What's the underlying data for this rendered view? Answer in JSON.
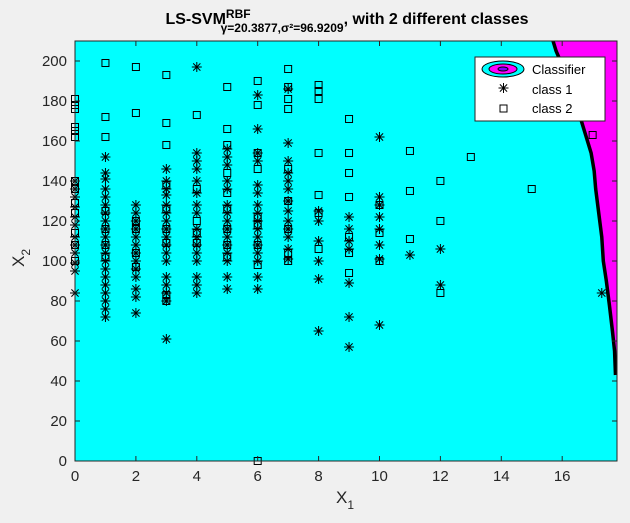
{
  "chart_data": {
    "type": "scatter",
    "title": {
      "main": "LS-SVM",
      "superscript": "RBF",
      "subscript": "γ=20.3877,σ²=96.9209",
      "suffix": ", with 2 different classes"
    },
    "xlabel": {
      "base": "X",
      "sub": "1"
    },
    "ylabel": {
      "base": "X",
      "sub": "2"
    },
    "xlim": [
      0,
      17.8
    ],
    "ylim": [
      0,
      210
    ],
    "xticks": [
      0,
      2,
      4,
      6,
      8,
      10,
      12,
      14,
      16
    ],
    "yticks": [
      0,
      20,
      40,
      60,
      80,
      100,
      120,
      140,
      160,
      180,
      200
    ],
    "grid": false,
    "legend_position": "top-right",
    "colors": {
      "region_class_1": "#00ffff",
      "region_class_2": "#ff00ff",
      "boundary": "#000000",
      "markers": "#000000",
      "figure_background": "#f0f0f0"
    },
    "legend": [
      "Classifier",
      "class 1",
      "class 2"
    ],
    "decision_boundary": [
      [
        15.7,
        210
      ],
      [
        15.8,
        205
      ],
      [
        16.0,
        198
      ],
      [
        16.2,
        190
      ],
      [
        16.4,
        182
      ],
      [
        16.55,
        174
      ],
      [
        16.75,
        164
      ],
      [
        16.95,
        154
      ],
      [
        17.05,
        145
      ],
      [
        17.1,
        136
      ],
      [
        17.2,
        124
      ],
      [
        17.3,
        112
      ],
      [
        17.35,
        100
      ],
      [
        17.45,
        90
      ],
      [
        17.55,
        78
      ],
      [
        17.65,
        65
      ],
      [
        17.72,
        55
      ],
      [
        17.75,
        43
      ]
    ],
    "series": [
      {
        "name": "class 1",
        "marker": "asterisk",
        "points": [
          [
            0,
            84
          ],
          [
            0,
            95
          ],
          [
            0,
            99
          ],
          [
            0,
            104
          ],
          [
            0,
            108
          ],
          [
            0,
            112
          ],
          [
            0,
            118
          ],
          [
            0,
            122
          ],
          [
            0,
            127
          ],
          [
            0,
            132
          ],
          [
            0,
            136
          ],
          [
            0,
            140
          ],
          [
            1,
            72
          ],
          [
            1,
            76
          ],
          [
            1,
            80
          ],
          [
            1,
            84
          ],
          [
            1,
            88
          ],
          [
            1,
            92
          ],
          [
            1,
            96
          ],
          [
            1,
            100
          ],
          [
            1,
            104
          ],
          [
            1,
            108
          ],
          [
            1,
            112
          ],
          [
            1,
            116
          ],
          [
            1,
            120
          ],
          [
            1,
            124
          ],
          [
            1,
            128
          ],
          [
            1,
            132
          ],
          [
            1,
            136
          ],
          [
            1,
            141
          ],
          [
            1,
            144
          ],
          [
            1,
            152
          ],
          [
            2,
            74
          ],
          [
            2,
            82
          ],
          [
            2,
            86
          ],
          [
            2,
            92
          ],
          [
            2,
            96
          ],
          [
            2,
            100
          ],
          [
            2,
            104
          ],
          [
            2,
            108
          ],
          [
            2,
            112
          ],
          [
            2,
            116
          ],
          [
            2,
            120
          ],
          [
            2,
            124
          ],
          [
            2,
            128
          ],
          [
            3,
            61
          ],
          [
            3,
            80
          ],
          [
            3,
            84
          ],
          [
            3,
            88
          ],
          [
            3,
            92
          ],
          [
            3,
            100
          ],
          [
            3,
            104
          ],
          [
            3,
            108
          ],
          [
            3,
            112
          ],
          [
            3,
            116
          ],
          [
            3,
            120
          ],
          [
            3,
            124
          ],
          [
            3,
            128
          ],
          [
            3,
            133
          ],
          [
            3,
            136
          ],
          [
            3,
            140
          ],
          [
            3,
            146
          ],
          [
            4,
            84
          ],
          [
            4,
            88
          ],
          [
            4,
            92
          ],
          [
            4,
            100
          ],
          [
            4,
            104
          ],
          [
            4,
            108
          ],
          [
            4,
            112
          ],
          [
            4,
            116
          ],
          [
            4,
            124
          ],
          [
            4,
            128
          ],
          [
            4,
            134
          ],
          [
            4,
            140
          ],
          [
            4,
            146
          ],
          [
            4,
            150
          ],
          [
            4,
            154
          ],
          [
            4,
            197
          ],
          [
            5,
            86
          ],
          [
            5,
            92
          ],
          [
            5,
            100
          ],
          [
            5,
            104
          ],
          [
            5,
            108
          ],
          [
            5,
            112
          ],
          [
            5,
            116
          ],
          [
            5,
            120
          ],
          [
            5,
            124
          ],
          [
            5,
            128
          ],
          [
            5,
            136
          ],
          [
            5,
            140
          ],
          [
            5,
            148
          ],
          [
            5,
            152
          ],
          [
            5,
            156
          ],
          [
            6,
            86
          ],
          [
            6,
            92
          ],
          [
            6,
            100
          ],
          [
            6,
            104
          ],
          [
            6,
            108
          ],
          [
            6,
            112
          ],
          [
            6,
            116
          ],
          [
            6,
            120
          ],
          [
            6,
            124
          ],
          [
            6,
            128
          ],
          [
            6,
            134
          ],
          [
            6,
            138
          ],
          [
            6,
            150
          ],
          [
            6,
            154
          ],
          [
            6,
            166
          ],
          [
            6,
            183
          ],
          [
            7,
            101
          ],
          [
            7,
            106
          ],
          [
            7,
            112
          ],
          [
            7,
            116
          ],
          [
            7,
            120
          ],
          [
            7,
            125
          ],
          [
            7,
            130
          ],
          [
            7,
            136
          ],
          [
            7,
            140
          ],
          [
            7,
            144
          ],
          [
            7,
            150
          ],
          [
            7,
            159
          ],
          [
            7,
            186
          ],
          [
            8,
            65
          ],
          [
            8,
            91
          ],
          [
            8,
            100
          ],
          [
            8,
            110
          ],
          [
            8,
            120
          ],
          [
            8,
            125
          ],
          [
            9,
            57
          ],
          [
            9,
            72
          ],
          [
            9,
            89
          ],
          [
            9,
            106
          ],
          [
            9,
            110
          ],
          [
            9,
            116
          ],
          [
            9,
            122
          ],
          [
            10,
            68
          ],
          [
            10,
            101
          ],
          [
            10,
            108
          ],
          [
            10,
            116
          ],
          [
            10,
            122
          ],
          [
            10,
            128
          ],
          [
            10,
            132
          ],
          [
            10,
            162
          ],
          [
            11,
            103
          ],
          [
            12,
            88
          ],
          [
            12,
            106
          ],
          [
            17.3,
            84
          ]
        ]
      },
      {
        "name": "class 2",
        "marker": "square",
        "points": [
          [
            0,
            100
          ],
          [
            0,
            108
          ],
          [
            0,
            114
          ],
          [
            0,
            124
          ],
          [
            0,
            129
          ],
          [
            0,
            136
          ],
          [
            0,
            140
          ],
          [
            0,
            162
          ],
          [
            0,
            165
          ],
          [
            0,
            167
          ],
          [
            0,
            176
          ],
          [
            0,
            178
          ],
          [
            0,
            181
          ],
          [
            1,
            102
          ],
          [
            1,
            108
          ],
          [
            1,
            116
          ],
          [
            1,
            125
          ],
          [
            1,
            162
          ],
          [
            1,
            172
          ],
          [
            1,
            199
          ],
          [
            2,
            97
          ],
          [
            2,
            104
          ],
          [
            2,
            116
          ],
          [
            2,
            120
          ],
          [
            2,
            174
          ],
          [
            2,
            197
          ],
          [
            3,
            80
          ],
          [
            3,
            83
          ],
          [
            3,
            109
          ],
          [
            3,
            116
          ],
          [
            3,
            126
          ],
          [
            3,
            138
          ],
          [
            3,
            158
          ],
          [
            3,
            169
          ],
          [
            3,
            193
          ],
          [
            4,
            109
          ],
          [
            4,
            114
          ],
          [
            4,
            120
          ],
          [
            4,
            136
          ],
          [
            4,
            173
          ],
          [
            5,
            102
          ],
          [
            5,
            108
          ],
          [
            5,
            116
          ],
          [
            5,
            126
          ],
          [
            5,
            134
          ],
          [
            5,
            144
          ],
          [
            5,
            158
          ],
          [
            5,
            166
          ],
          [
            5,
            187
          ],
          [
            6,
            0
          ],
          [
            6,
            98
          ],
          [
            6,
            108
          ],
          [
            6,
            118
          ],
          [
            6,
            122
          ],
          [
            6,
            146
          ],
          [
            6,
            154
          ],
          [
            6,
            178
          ],
          [
            6,
            190
          ],
          [
            7,
            100
          ],
          [
            7,
            104
          ],
          [
            7,
            116
          ],
          [
            7,
            130
          ],
          [
            7,
            146
          ],
          [
            7,
            176
          ],
          [
            7,
            181
          ],
          [
            7,
            187
          ],
          [
            7,
            196
          ],
          [
            8,
            106
          ],
          [
            8,
            124
          ],
          [
            8,
            133
          ],
          [
            8,
            154
          ],
          [
            8,
            181
          ],
          [
            8,
            185
          ],
          [
            8,
            188
          ],
          [
            9,
            94
          ],
          [
            9,
            104
          ],
          [
            9,
            112
          ],
          [
            9,
            132
          ],
          [
            9,
            144
          ],
          [
            9,
            154
          ],
          [
            9,
            171
          ],
          [
            10,
            100
          ],
          [
            10,
            114
          ],
          [
            10,
            128
          ],
          [
            11,
            111
          ],
          [
            11,
            135
          ],
          [
            11,
            155
          ],
          [
            12,
            84
          ],
          [
            12,
            120
          ],
          [
            12,
            140
          ],
          [
            13,
            152
          ],
          [
            15,
            136
          ],
          [
            17,
            163
          ]
        ]
      }
    ]
  }
}
